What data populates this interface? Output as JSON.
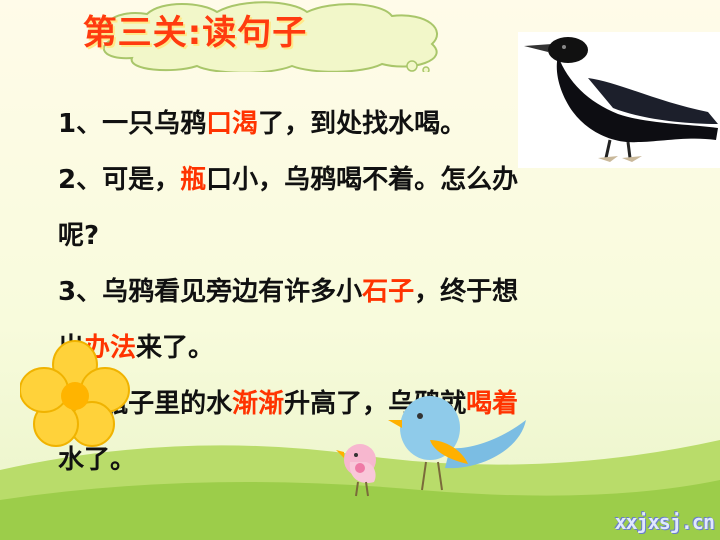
{
  "title": "第三关:读句子",
  "lines": [
    {
      "parts": [
        {
          "t": "1、一只乌鸦"
        },
        {
          "t": "口渴",
          "hl": true
        },
        {
          "t": "了，到处找水喝。"
        }
      ]
    },
    {
      "parts": [
        {
          "t": "2、可是，"
        },
        {
          "t": "瓶",
          "hl": true
        },
        {
          "t": "口小，乌鸦喝不着。怎么办"
        }
      ]
    },
    {
      "parts": [
        {
          "t": "呢?"
        }
      ]
    },
    {
      "parts": [
        {
          "t": "3、乌鸦看见旁边有许多小"
        },
        {
          "t": "石子",
          "hl": true
        },
        {
          "t": "，终于想"
        }
      ]
    },
    {
      "parts": [
        {
          "t": "出"
        },
        {
          "t": "办法",
          "hl": true
        },
        {
          "t": "来了。"
        }
      ]
    },
    {
      "parts": [
        {
          "t": "4、瓶子里的水"
        },
        {
          "t": "渐渐",
          "hl": true
        },
        {
          "t": "升高了，乌鸦就"
        },
        {
          "t": "喝着",
          "hl": true
        }
      ]
    },
    {
      "parts": [
        {
          "t": "水了。"
        }
      ]
    }
  ],
  "watermark": "xxjxsj.cn",
  "icons": {
    "crow": "crow-icon",
    "flower": "flower-icon",
    "birds": "bird-icon"
  },
  "colors": {
    "highlight": "#ff3300",
    "title": "#ff3b0f"
  }
}
